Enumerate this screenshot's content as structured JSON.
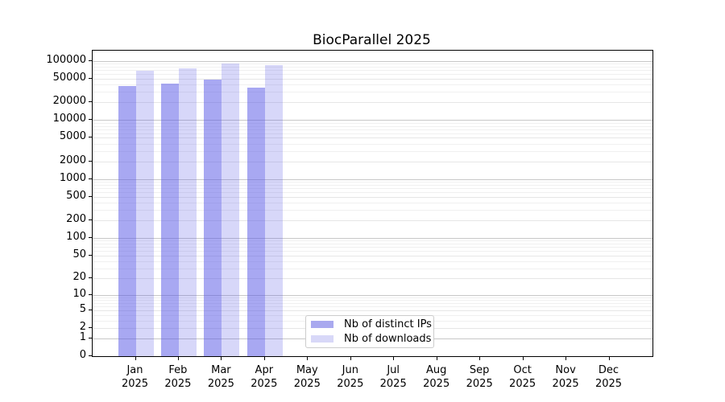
{
  "title": "BiocParallel 2025",
  "chart_data": {
    "type": "bar",
    "title": "BiocParallel 2025",
    "xlabel": "",
    "ylabel": "",
    "categories": [
      "Jan 2025",
      "Feb 2025",
      "Mar 2025",
      "Apr 2025",
      "May 2025",
      "Jun 2025",
      "Jul 2025",
      "Aug 2025",
      "Sep 2025",
      "Oct 2025",
      "Nov 2025",
      "Dec 2025"
    ],
    "series": [
      {
        "name": "Nb of distinct IPs",
        "color": "#a9a9ef",
        "fill": "rgba(88,88,230,0.52)",
        "values": [
          38000,
          42000,
          48000,
          35000,
          null,
          null,
          null,
          null,
          null,
          null,
          null,
          null
        ]
      },
      {
        "name": "Nb of downloads",
        "color": "#d8d8f8",
        "fill": "rgba(88,88,230,0.24)",
        "values": [
          68000,
          76000,
          92000,
          86000,
          null,
          null,
          null,
          null,
          null,
          null,
          null,
          null
        ]
      }
    ],
    "yscale": "log10(1+x)",
    "yticks": [
      0,
      1,
      2,
      5,
      10,
      20,
      50,
      100,
      200,
      500,
      1000,
      2000,
      5000,
      10000,
      20000,
      50000,
      100000
    ],
    "ylim": [
      0,
      150000
    ],
    "grid": true,
    "grid_major_color": "#c7c7c7",
    "grid_tick_color": "#e6e6e6",
    "grid_minor_color": "#f0f0f0",
    "legend_position": "lower center"
  }
}
